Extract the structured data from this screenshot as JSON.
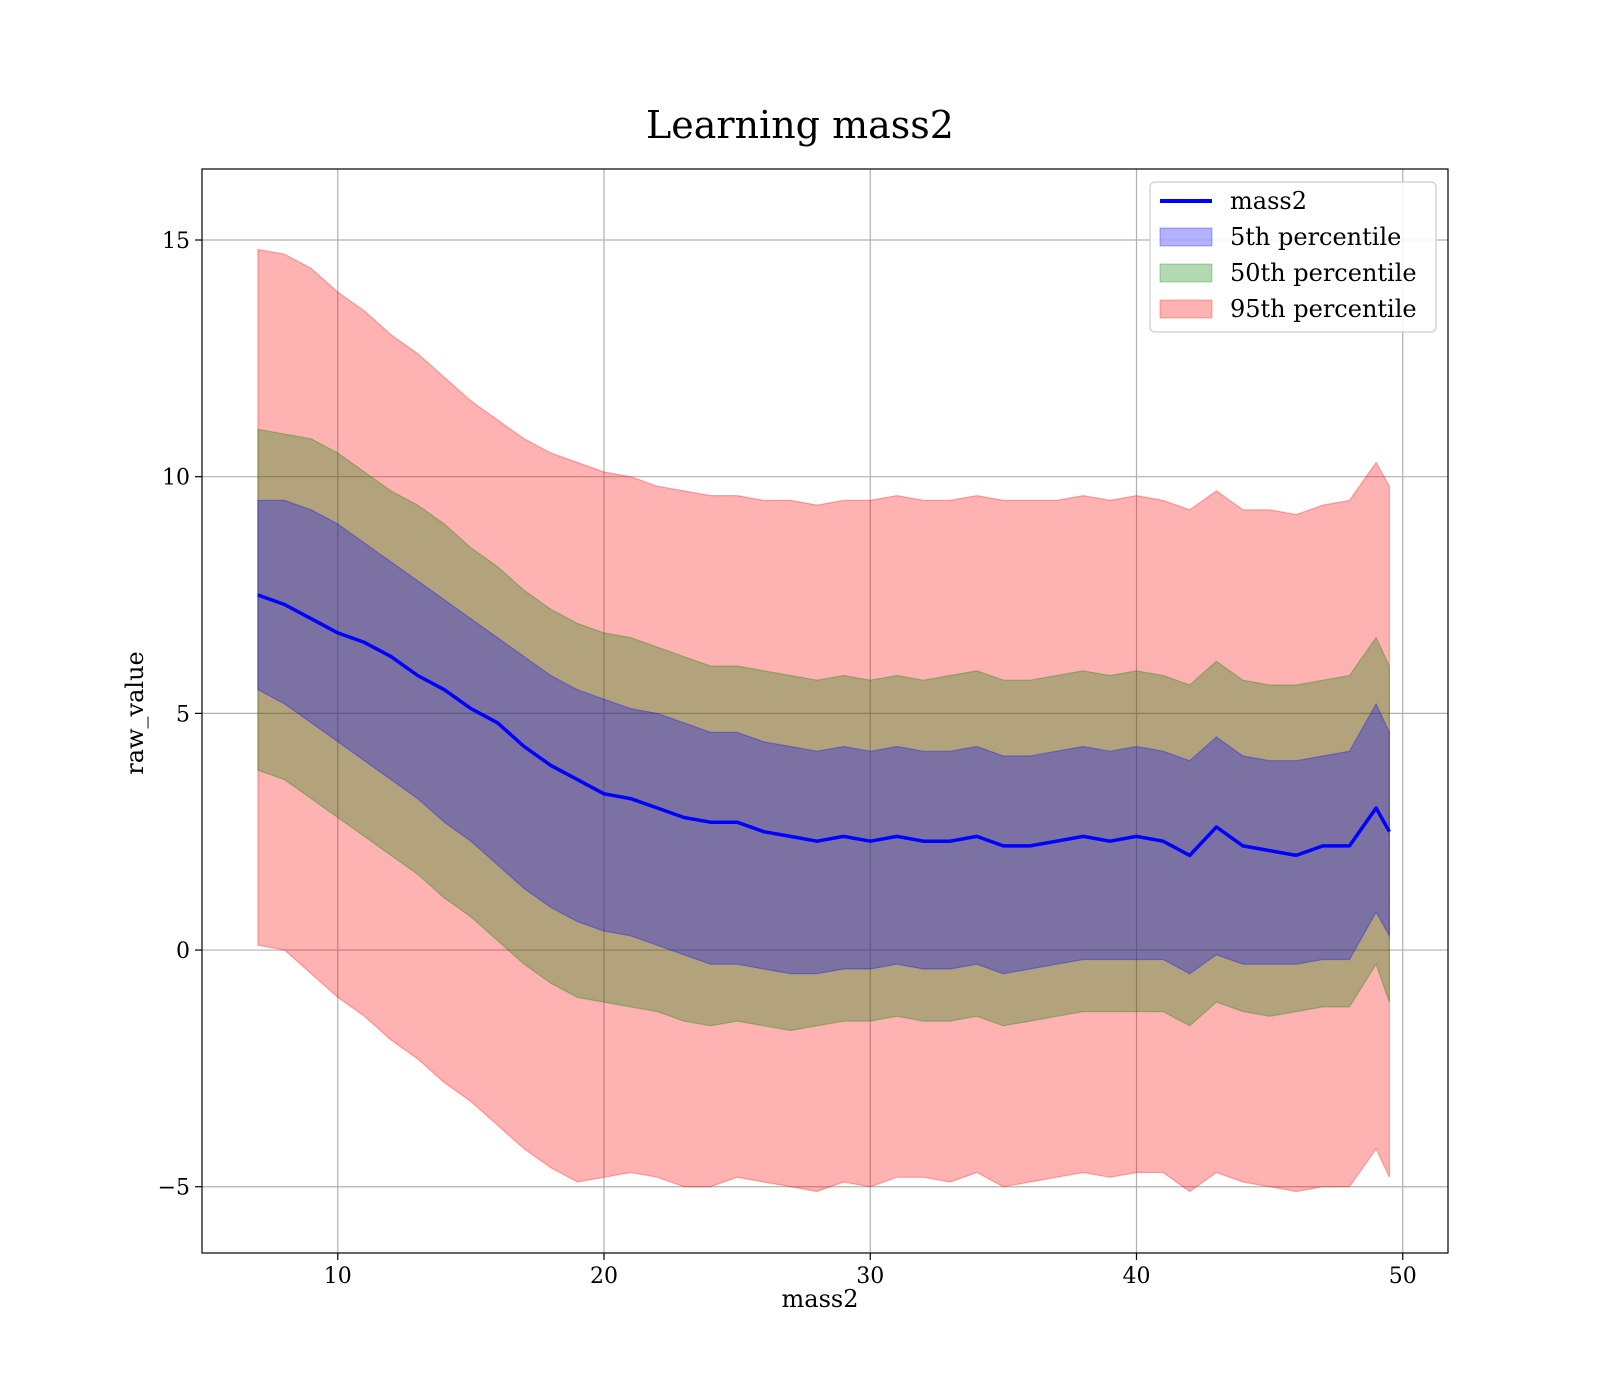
{
  "chart_data": {
    "type": "line",
    "title": "Learning mass2",
    "xlabel": "mass2",
    "ylabel": "raw_value",
    "xlim": [
      4.9,
      51.7
    ],
    "ylim": [
      -6.4,
      16.5
    ],
    "xticks": [
      10,
      20,
      30,
      40,
      50
    ],
    "yticks": [
      -5,
      0,
      5,
      10,
      15
    ],
    "grid": true,
    "legend_position": "top-right",
    "colors": {
      "line": "#0000ff",
      "p5": "#0000ff",
      "p50": "#008000",
      "p95": "#ff0000"
    },
    "x": [
      7.0,
      8.0,
      9.0,
      10.0,
      11.0,
      12.0,
      13.0,
      14.0,
      15.0,
      16.0,
      17.0,
      18.0,
      19.0,
      20.0,
      21.0,
      22.0,
      23.0,
      24.0,
      25.0,
      26.0,
      27.0,
      28.0,
      29.0,
      30.0,
      31.0,
      32.0,
      33.0,
      34.0,
      35.0,
      36.0,
      37.0,
      38.0,
      39.0,
      40.0,
      41.0,
      42.0,
      43.0,
      44.0,
      45.0,
      46.0,
      47.0,
      48.0,
      49.0,
      49.5
    ],
    "series": [
      {
        "name": "mass2",
        "kind": "line",
        "values": [
          7.5,
          7.3,
          7.0,
          6.7,
          6.5,
          6.2,
          5.8,
          5.5,
          5.1,
          4.8,
          4.3,
          3.9,
          3.6,
          3.3,
          3.2,
          3.0,
          2.8,
          2.7,
          2.7,
          2.5,
          2.4,
          2.3,
          2.4,
          2.3,
          2.4,
          2.3,
          2.3,
          2.4,
          2.2,
          2.2,
          2.3,
          2.4,
          2.3,
          2.4,
          2.3,
          2.0,
          2.6,
          2.2,
          2.1,
          2.0,
          2.2,
          2.2,
          3.0,
          2.5
        ]
      },
      {
        "name": "5th percentile",
        "kind": "band",
        "lower": [
          5.5,
          5.2,
          4.8,
          4.4,
          4.0,
          3.6,
          3.2,
          2.7,
          2.3,
          1.8,
          1.3,
          0.9,
          0.6,
          0.4,
          0.3,
          0.1,
          -0.1,
          -0.3,
          -0.3,
          -0.4,
          -0.5,
          -0.5,
          -0.4,
          -0.4,
          -0.3,
          -0.4,
          -0.4,
          -0.3,
          -0.5,
          -0.4,
          -0.3,
          -0.2,
          -0.2,
          -0.2,
          -0.2,
          -0.5,
          -0.1,
          -0.3,
          -0.3,
          -0.3,
          -0.2,
          -0.2,
          0.8,
          0.3
        ],
        "upper": [
          9.5,
          9.5,
          9.3,
          9.0,
          8.6,
          8.2,
          7.8,
          7.4,
          7.0,
          6.6,
          6.2,
          5.8,
          5.5,
          5.3,
          5.1,
          5.0,
          4.8,
          4.6,
          4.6,
          4.4,
          4.3,
          4.2,
          4.3,
          4.2,
          4.3,
          4.2,
          4.2,
          4.3,
          4.1,
          4.1,
          4.2,
          4.3,
          4.2,
          4.3,
          4.2,
          4.0,
          4.5,
          4.1,
          4.0,
          4.0,
          4.1,
          4.2,
          5.2,
          4.6
        ]
      },
      {
        "name": "50th percentile",
        "kind": "band",
        "lower": [
          3.8,
          3.6,
          3.2,
          2.8,
          2.4,
          2.0,
          1.6,
          1.1,
          0.7,
          0.2,
          -0.3,
          -0.7,
          -1.0,
          -1.1,
          -1.2,
          -1.3,
          -1.5,
          -1.6,
          -1.5,
          -1.6,
          -1.7,
          -1.6,
          -1.5,
          -1.5,
          -1.4,
          -1.5,
          -1.5,
          -1.4,
          -1.6,
          -1.5,
          -1.4,
          -1.3,
          -1.3,
          -1.3,
          -1.3,
          -1.6,
          -1.1,
          -1.3,
          -1.4,
          -1.3,
          -1.2,
          -1.2,
          -0.3,
          -1.1
        ],
        "upper": [
          11.0,
          10.9,
          10.8,
          10.5,
          10.1,
          9.7,
          9.4,
          9.0,
          8.5,
          8.1,
          7.6,
          7.2,
          6.9,
          6.7,
          6.6,
          6.4,
          6.2,
          6.0,
          6.0,
          5.9,
          5.8,
          5.7,
          5.8,
          5.7,
          5.8,
          5.7,
          5.8,
          5.9,
          5.7,
          5.7,
          5.8,
          5.9,
          5.8,
          5.9,
          5.8,
          5.6,
          6.1,
          5.7,
          5.6,
          5.6,
          5.7,
          5.8,
          6.6,
          6.0
        ]
      },
      {
        "name": "95th percentile",
        "kind": "band",
        "lower": [
          0.1,
          0.0,
          -0.5,
          -1.0,
          -1.4,
          -1.9,
          -2.3,
          -2.8,
          -3.2,
          -3.7,
          -4.2,
          -4.6,
          -4.9,
          -4.8,
          -4.7,
          -4.8,
          -5.0,
          -5.0,
          -4.8,
          -4.9,
          -5.0,
          -5.1,
          -4.9,
          -5.0,
          -4.8,
          -4.8,
          -4.9,
          -4.7,
          -5.0,
          -4.9,
          -4.8,
          -4.7,
          -4.8,
          -4.7,
          -4.7,
          -5.1,
          -4.7,
          -4.9,
          -5.0,
          -5.1,
          -5.0,
          -5.0,
          -4.2,
          -4.8
        ],
        "upper": [
          14.8,
          14.7,
          14.4,
          13.9,
          13.5,
          13.0,
          12.6,
          12.1,
          11.6,
          11.2,
          10.8,
          10.5,
          10.3,
          10.1,
          10.0,
          9.8,
          9.7,
          9.6,
          9.6,
          9.5,
          9.5,
          9.4,
          9.5,
          9.5,
          9.6,
          9.5,
          9.5,
          9.6,
          9.5,
          9.5,
          9.5,
          9.6,
          9.5,
          9.6,
          9.5,
          9.3,
          9.7,
          9.3,
          9.3,
          9.2,
          9.4,
          9.5,
          10.3,
          9.8
        ]
      }
    ]
  }
}
